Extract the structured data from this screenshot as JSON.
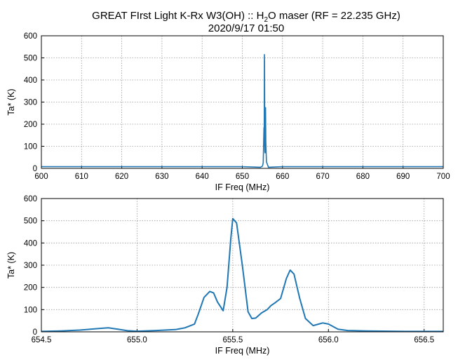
{
  "figure": {
    "title_line1": "GREAT FIrst Light K-Rx W3(OH) :: H",
    "title_sub": "2",
    "title_line1_rest": "O maser (RF = 22.235 GHz)",
    "title_line2": "2020/9/17 01:50",
    "line_color": "#1f77b4"
  },
  "chart_data": [
    {
      "type": "line",
      "xlabel": "IF Freq (MHz)",
      "ylabel": "Ta* (K)",
      "xlim": [
        600,
        700
      ],
      "ylim": [
        0,
        600
      ],
      "xticks": [
        "600",
        "610",
        "620",
        "630",
        "640",
        "650",
        "660",
        "670",
        "680",
        "690",
        "700"
      ],
      "yticks": [
        "0",
        "100",
        "200",
        "300",
        "400",
        "500",
        "600"
      ],
      "grid": true,
      "series": [
        {
          "x": [
            600,
            620,
            640,
            650,
            654.5,
            655.0,
            655.2,
            655.35,
            655.4,
            655.45,
            655.5,
            655.53,
            655.56,
            655.6,
            655.65,
            655.7,
            655.78,
            655.85,
            656.0,
            656.5,
            660,
            680,
            700
          ],
          "y": [
            8,
            8,
            8,
            8,
            5,
            10,
            25,
            160,
            185,
            100,
            515,
            480,
            280,
            80,
            70,
            100,
            275,
            120,
            30,
            5,
            8,
            8,
            8
          ]
        }
      ]
    },
    {
      "type": "line",
      "xlabel": "IF Freq (MHz)",
      "ylabel": "Ta* (K)",
      "xlim": [
        654.5,
        656.6
      ],
      "ylim": [
        0,
        600
      ],
      "xticks": [
        "654.5",
        "655.0",
        "655.5",
        "656.0",
        "656.5"
      ],
      "yticks": [
        "0",
        "100",
        "200",
        "300",
        "400",
        "500",
        "600"
      ],
      "grid": true,
      "series": [
        {
          "x": [
            654.5,
            654.6,
            654.7,
            654.8,
            654.85,
            654.9,
            654.95,
            655.0,
            655.1,
            655.2,
            655.25,
            655.3,
            655.32,
            655.35,
            655.38,
            655.4,
            655.42,
            655.45,
            655.47,
            655.49,
            655.5,
            655.52,
            655.55,
            655.58,
            655.6,
            655.62,
            655.65,
            655.68,
            655.7,
            655.72,
            655.75,
            655.78,
            655.8,
            655.82,
            655.85,
            655.88,
            655.92,
            655.95,
            655.97,
            656.0,
            656.05,
            656.1,
            656.2,
            656.4,
            656.6
          ],
          "y": [
            2,
            4,
            8,
            15,
            18,
            12,
            5,
            3,
            6,
            10,
            18,
            35,
            80,
            155,
            182,
            175,
            135,
            95,
            200,
            420,
            510,
            490,
            300,
            90,
            60,
            62,
            85,
            100,
            118,
            130,
            150,
            240,
            278,
            260,
            150,
            60,
            28,
            35,
            40,
            35,
            12,
            6,
            4,
            2,
            2
          ]
        }
      ]
    }
  ]
}
